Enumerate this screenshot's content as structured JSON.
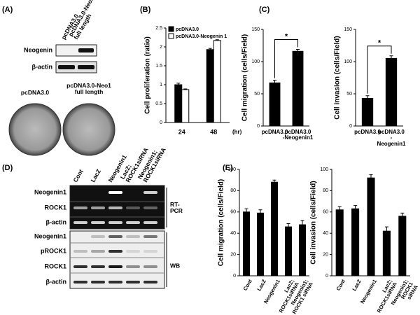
{
  "figure": {
    "panels": [
      "(A)",
      "(B)",
      "(C)",
      "(D)",
      "(E)"
    ],
    "a_lanes": [
      "pcDNA3.0",
      "pcDNA3.0-Neo1\nfull length"
    ],
    "a_rows": [
      "Neogenin",
      "β-actin"
    ],
    "a_plates": [
      "pcDNA3.0",
      "pcDNA3.0-Neo1\nfull length"
    ],
    "d_lanes": [
      "Cont",
      "LacZ",
      "Neogenin1",
      "LacZ;\nROCK1siRNA",
      "Neogenin1;\nROCK1siRNA"
    ],
    "d_rt_rows": [
      "Neogenin1",
      "ROCK1",
      "β-actin"
    ],
    "d_wb_rows": [
      "Neogenin1",
      "pROCK1",
      "ROCK1",
      "β-actin"
    ],
    "d_sides": [
      "RT-\nPCR",
      "WB"
    ]
  },
  "chart_data": [
    {
      "type": "bar",
      "ylabel": "Cell proliferation (ratio)",
      "xlabel": "(hr)",
      "categories": [
        "24",
        "48"
      ],
      "series": [
        {
          "name": "pcDNA3.0",
          "color": "#000000",
          "values": [
            1.0,
            1.93
          ],
          "errors": [
            0.04,
            0.03
          ]
        },
        {
          "name": "pcDNA3.0-Neogenin 1",
          "color": "#ffffff",
          "values": [
            0.87,
            2.17
          ],
          "errors": [
            0.02,
            0.02
          ]
        }
      ],
      "ylim": [
        0,
        2.5
      ],
      "yticks": [
        0,
        0.5,
        1,
        1.5,
        2,
        2.5
      ],
      "legend": "upper left"
    },
    {
      "type": "bar",
      "ylabel": "Cell migration (cells/Field)",
      "categories": [
        "pcDNA3.0",
        "pcDNA3.0\n-Neogenin1"
      ],
      "values": [
        67,
        116
      ],
      "errors": [
        4,
        3
      ],
      "color": "#000000",
      "ylim": [
        0,
        150
      ],
      "yticks": [
        0,
        50,
        100,
        150
      ],
      "annotations": [
        "*"
      ]
    },
    {
      "type": "bar",
      "ylabel": "Cell invasion (cells/Field)",
      "categories": [
        "pcDNA3.0",
        "pcDNA3.0\n-Neogenin1"
      ],
      "values": [
        43,
        105
      ],
      "errors": [
        4,
        4
      ],
      "color": "#000000",
      "ylim": [
        0,
        150
      ],
      "yticks": [
        0,
        50,
        100,
        150
      ],
      "annotations": [
        "*"
      ]
    },
    {
      "type": "bar",
      "ylabel": "Cell migration (cells/Field)",
      "categories": [
        "Cont",
        "LacZ",
        "Neogenin1",
        "LacZ;\nROCK1siRNA",
        "Neogenin1;\nROCK1 siRNA"
      ],
      "values": [
        60,
        59,
        88,
        46,
        48
      ],
      "errors": [
        3,
        3,
        2,
        3,
        4
      ],
      "color": "#000000",
      "ylim": [
        0,
        100
      ],
      "yticks": [
        0,
        20,
        40,
        60,
        80,
        100
      ]
    },
    {
      "type": "bar",
      "ylabel": "Cell invasion (cells/Field)",
      "categories": [
        "Cont",
        "LacZ",
        "Neogenin1",
        "LacZ;\nROCK1siRNA",
        "Neogenin1;\nROCK1 siRNA"
      ],
      "values": [
        62,
        63,
        92,
        42,
        56
      ],
      "errors": [
        3,
        3,
        3,
        4,
        3
      ],
      "color": "#000000",
      "ylim": [
        0,
        100
      ],
      "yticks": [
        0,
        20,
        40,
        60,
        80,
        100
      ]
    }
  ]
}
